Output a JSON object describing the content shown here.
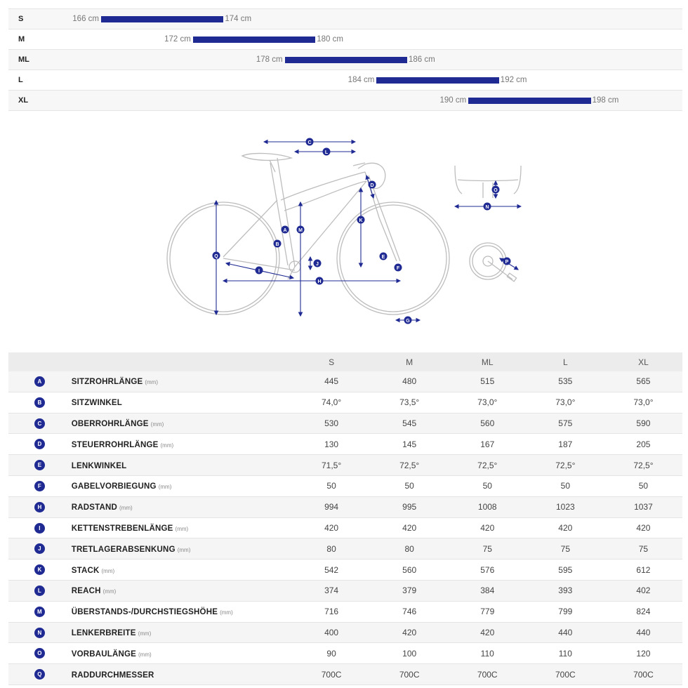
{
  "size_ranges": [
    {
      "size": "S",
      "min": "166 cm",
      "max": "174 cm",
      "min_cm": 166,
      "max_cm": 174
    },
    {
      "size": "M",
      "min": "172 cm",
      "max": "180 cm",
      "min_cm": 172,
      "max_cm": 180
    },
    {
      "size": "ML",
      "min": "178 cm",
      "max": "186 cm",
      "min_cm": 178,
      "max_cm": 186
    },
    {
      "size": "L",
      "min": "184 cm",
      "max": "192 cm",
      "min_cm": 184,
      "max_cm": 192
    },
    {
      "size": "XL",
      "min": "190 cm",
      "max": "198 cm",
      "min_cm": 190,
      "max_cm": 198
    }
  ],
  "diagram_letters": [
    "A",
    "B",
    "C",
    "D",
    "E",
    "F",
    "G",
    "H",
    "I",
    "J",
    "K",
    "L",
    "M",
    "N",
    "O",
    "P",
    "Q"
  ],
  "table": {
    "columns": [
      "S",
      "M",
      "ML",
      "L",
      "XL"
    ],
    "rows": [
      {
        "letter": "A",
        "label": "SITZROHRLÄNGE",
        "unit": "(mm)",
        "values": [
          "445",
          "480",
          "515",
          "535",
          "565"
        ]
      },
      {
        "letter": "B",
        "label": "SITZWINKEL",
        "unit": "",
        "values": [
          "74,0°",
          "73,5°",
          "73,0°",
          "73,0°",
          "73,0°"
        ]
      },
      {
        "letter": "C",
        "label": "OBERROHRLÄNGE",
        "unit": "(mm)",
        "values": [
          "530",
          "545",
          "560",
          "575",
          "590"
        ]
      },
      {
        "letter": "D",
        "label": "STEUERROHRLÄNGE",
        "unit": "(mm)",
        "values": [
          "130",
          "145",
          "167",
          "187",
          "205"
        ]
      },
      {
        "letter": "E",
        "label": "LENKWINKEL",
        "unit": "",
        "values": [
          "71,5°",
          "72,5°",
          "72,5°",
          "72,5°",
          "72,5°"
        ]
      },
      {
        "letter": "F",
        "label": "GABELVORBIEGUNG",
        "unit": "(mm)",
        "values": [
          "50",
          "50",
          "50",
          "50",
          "50"
        ]
      },
      {
        "letter": "H",
        "label": "RADSTAND",
        "unit": "(mm)",
        "values": [
          "994",
          "995",
          "1008",
          "1023",
          "1037"
        ]
      },
      {
        "letter": "I",
        "label": "KETTENSTREBENLÄNGE",
        "unit": "(mm)",
        "values": [
          "420",
          "420",
          "420",
          "420",
          "420"
        ]
      },
      {
        "letter": "J",
        "label": "TRETLAGERABSENKUNG",
        "unit": "(mm)",
        "values": [
          "80",
          "80",
          "75",
          "75",
          "75"
        ]
      },
      {
        "letter": "K",
        "label": "STACK",
        "unit": "(mm)",
        "values": [
          "542",
          "560",
          "576",
          "595",
          "612"
        ]
      },
      {
        "letter": "L",
        "label": "REACH",
        "unit": "(mm)",
        "values": [
          "374",
          "379",
          "384",
          "393",
          "402"
        ]
      },
      {
        "letter": "M",
        "label": "ÜBERSTANDS-/DURCHSTIEGSHÖHE",
        "unit": "(mm)",
        "values": [
          "716",
          "746",
          "779",
          "799",
          "824"
        ]
      },
      {
        "letter": "N",
        "label": "LENKERBREITE",
        "unit": "(mm)",
        "values": [
          "400",
          "420",
          "420",
          "440",
          "440"
        ]
      },
      {
        "letter": "O",
        "label": "VORBAULÄNGE",
        "unit": "(mm)",
        "values": [
          "90",
          "100",
          "110",
          "110",
          "120"
        ]
      },
      {
        "letter": "Q",
        "label": "RADDURCHMESSER",
        "unit": "",
        "values": [
          "700C",
          "700C",
          "700C",
          "700C",
          "700C"
        ]
      }
    ]
  },
  "colors": {
    "accent": "#1f2a93",
    "frame_line": "#b8b8b8"
  }
}
